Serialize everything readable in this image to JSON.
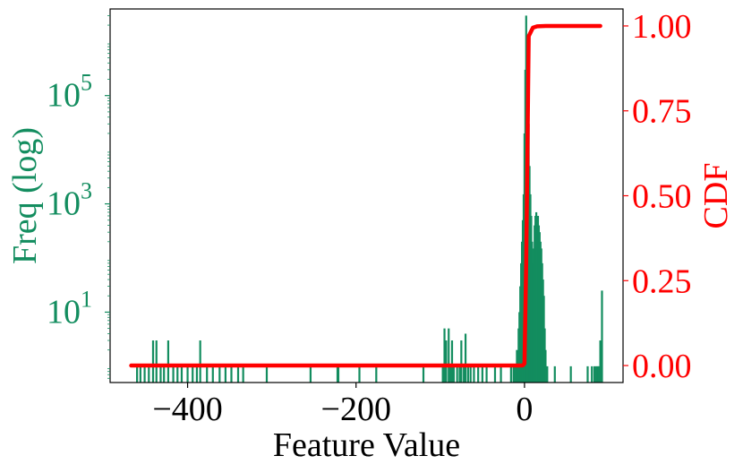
{
  "colors": {
    "histogram": "#138d5f",
    "cdf": "#ff0000",
    "axis": "#000000",
    "background": "#ffffff"
  },
  "chart_data": {
    "type": "bar",
    "subtype": "histogram with cumulative line overlay (twin y-axes)",
    "title": "",
    "xlabel": "Feature Value",
    "ylabel_left": "Freq (log)",
    "ylabel_right": "CDF",
    "xlim": [
      -492,
      117
    ],
    "ylim_left_log10": [
      -0.3,
      6.6
    ],
    "ylim_right": [
      -0.05,
      1.05
    ],
    "yscale_left": "log",
    "grid": false,
    "legend": "none",
    "x_ticks": [
      {
        "value": -400,
        "label": "−400"
      },
      {
        "value": -200,
        "label": "−200"
      },
      {
        "value": 0,
        "label": "0"
      }
    ],
    "y_left_ticks": [
      {
        "value": 5,
        "base": "10",
        "exp": "5"
      },
      {
        "value": 3,
        "base": "10",
        "exp": "3"
      },
      {
        "value": 1,
        "base": "10",
        "exp": "1"
      }
    ],
    "y_right_ticks": [
      {
        "value": 1.0,
        "label": "1.00"
      },
      {
        "value": 0.75,
        "label": "0.75"
      },
      {
        "value": 0.5,
        "label": "0.50"
      },
      {
        "value": 0.25,
        "label": "0.25"
      },
      {
        "value": 0.0,
        "label": "0.00"
      }
    ],
    "series": [
      {
        "kind": "histogram",
        "bars": [
          [
            -460,
            1
          ],
          [
            -456,
            1
          ],
          [
            -451,
            1
          ],
          [
            -446,
            1
          ],
          [
            -441,
            3
          ],
          [
            -437,
            3
          ],
          [
            -432,
            1
          ],
          [
            -428,
            1
          ],
          [
            -423,
            3
          ],
          [
            -417,
            1
          ],
          [
            -412,
            1
          ],
          [
            -407,
            1
          ],
          [
            -400,
            1
          ],
          [
            -394,
            1
          ],
          [
            -389,
            1
          ],
          [
            -385,
            3
          ],
          [
            -377,
            1
          ],
          [
            -370,
            1
          ],
          [
            -362,
            1
          ],
          [
            -355,
            1
          ],
          [
            -348,
            1
          ],
          [
            -340,
            1
          ],
          [
            -334,
            1
          ],
          [
            -306,
            1
          ],
          [
            -254,
            1
          ],
          [
            -222,
            1
          ],
          [
            -221,
            1
          ],
          [
            -196,
            1
          ],
          [
            -176,
            1
          ],
          [
            -120,
            1
          ],
          [
            -97,
            1
          ],
          [
            -95,
            5
          ],
          [
            -93,
            3
          ],
          [
            -90,
            5
          ],
          [
            -88,
            1
          ],
          [
            -86,
            3
          ],
          [
            -84,
            1
          ],
          [
            -80,
            1
          ],
          [
            -77,
            1
          ],
          [
            -75,
            3
          ],
          [
            -72,
            1
          ],
          [
            -70,
            4
          ],
          [
            -67,
            1
          ],
          [
            -64,
            1
          ],
          [
            -60,
            1
          ],
          [
            -55,
            1
          ],
          [
            -50,
            1
          ],
          [
            -45,
            1
          ],
          [
            -35,
            1
          ],
          [
            -28,
            1
          ],
          [
            -16,
            1
          ],
          [
            -13,
            1
          ],
          [
            -11,
            1
          ],
          [
            -9,
            2
          ],
          [
            -7,
            5
          ],
          [
            -6,
            10
          ],
          [
            -5,
            30
          ],
          [
            -4,
            80
          ],
          [
            -3,
            200
          ],
          [
            -2,
            500
          ],
          [
            -1,
            1500
          ],
          [
            0,
            20000
          ],
          [
            1,
            300000
          ],
          [
            2,
            3000000
          ],
          [
            3,
            1000000
          ],
          [
            4,
            100000
          ],
          [
            5,
            30000
          ],
          [
            6,
            5000
          ],
          [
            7,
            1500
          ],
          [
            8,
            600
          ],
          [
            9,
            200
          ],
          [
            10,
            80
          ],
          [
            11,
            150
          ],
          [
            12,
            400
          ],
          [
            13,
            600
          ],
          [
            14,
            700
          ],
          [
            15,
            500
          ],
          [
            16,
            600
          ],
          [
            17,
            400
          ],
          [
            18,
            300
          ],
          [
            19,
            200
          ],
          [
            20,
            150
          ],
          [
            21,
            80
          ],
          [
            22,
            40
          ],
          [
            23,
            20
          ],
          [
            24,
            5
          ],
          [
            25,
            2
          ],
          [
            27,
            1
          ],
          [
            36,
            1
          ],
          [
            55,
            1
          ],
          [
            75,
            1
          ],
          [
            80,
            1
          ],
          [
            83,
            1
          ],
          [
            85,
            1
          ],
          [
            87,
            1
          ],
          [
            88,
            1
          ],
          [
            90,
            3
          ],
          [
            92,
            25
          ]
        ]
      },
      {
        "kind": "line",
        "name": "CDF",
        "x": [
          -467,
          -5,
          -2,
          0,
          2,
          5,
          10,
          15,
          25,
          90
        ],
        "y": [
          0.0,
          0.0,
          0.0005,
          0.006,
          0.3,
          0.97,
          0.995,
          0.999,
          0.9998,
          1.0
        ]
      }
    ]
  }
}
